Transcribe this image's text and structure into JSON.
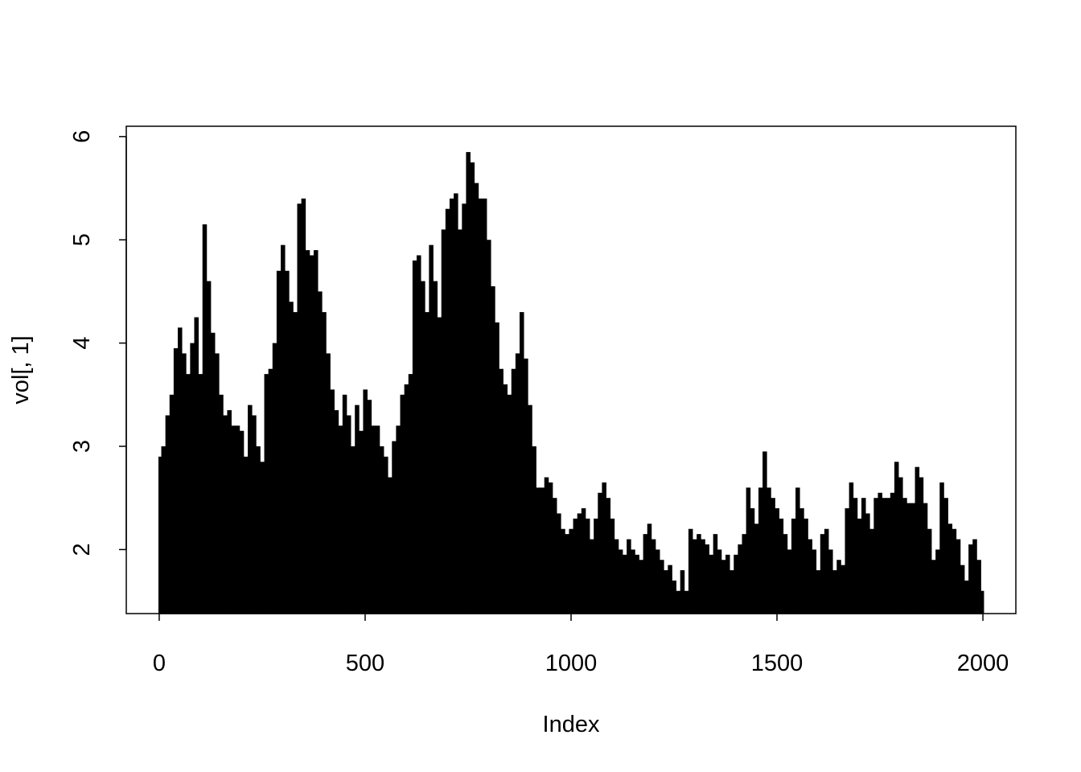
{
  "chart_data": {
    "type": "bar",
    "style": "histogram-like vertical lines (R type='h')",
    "title": "",
    "xlabel": "Index",
    "ylabel": "vol[, 1]",
    "xlim": [
      -80,
      2080
    ],
    "ylim": [
      1.38,
      6.1
    ],
    "xticks": [
      "0",
      "500",
      "1000",
      "1500",
      "2000"
    ],
    "yticks": [
      "2",
      "3",
      "4",
      "5",
      "6"
    ],
    "grid": false,
    "color": "#000000",
    "x_step": 10,
    "x_start": 0,
    "values": [
      2.9,
      3.0,
      3.3,
      3.5,
      3.95,
      4.15,
      3.9,
      3.7,
      4.0,
      4.25,
      3.7,
      5.15,
      4.6,
      4.1,
      3.9,
      3.5,
      3.3,
      3.35,
      3.2,
      3.2,
      3.15,
      2.9,
      3.4,
      3.3,
      3.0,
      2.85,
      3.7,
      3.75,
      4.0,
      4.7,
      4.95,
      4.7,
      4.4,
      4.3,
      5.35,
      5.4,
      4.9,
      4.85,
      4.9,
      4.5,
      4.3,
      3.9,
      3.55,
      3.35,
      3.2,
      3.5,
      3.3,
      3.0,
      3.4,
      3.15,
      3.55,
      3.45,
      3.2,
      3.2,
      3.0,
      2.9,
      2.7,
      3.05,
      3.2,
      3.5,
      3.6,
      3.7,
      4.8,
      4.85,
      4.6,
      4.3,
      4.95,
      4.6,
      4.25,
      5.1,
      5.3,
      5.4,
      5.45,
      5.1,
      5.35,
      5.85,
      5.75,
      5.55,
      5.4,
      5.4,
      5.0,
      4.55,
      4.2,
      3.75,
      3.6,
      3.5,
      3.75,
      3.9,
      4.3,
      3.85,
      3.4,
      3.0,
      2.6,
      2.6,
      2.7,
      2.65,
      2.5,
      2.35,
      2.2,
      2.15,
      2.2,
      2.3,
      2.35,
      2.4,
      2.3,
      2.1,
      2.3,
      2.55,
      2.65,
      2.5,
      2.3,
      2.1,
      2.0,
      1.95,
      2.1,
      2.0,
      1.95,
      1.9,
      2.15,
      2.25,
      2.1,
      2.0,
      1.9,
      1.8,
      1.85,
      1.7,
      1.6,
      1.8,
      1.6,
      2.2,
      2.1,
      2.15,
      2.1,
      2.05,
      1.95,
      2.15,
      2.0,
      1.9,
      1.95,
      1.8,
      1.95,
      2.05,
      2.15,
      2.6,
      2.4,
      2.25,
      2.6,
      2.95,
      2.6,
      2.5,
      2.4,
      2.3,
      2.15,
      2.0,
      2.3,
      2.6,
      2.4,
      2.3,
      2.1,
      2.0,
      1.8,
      2.15,
      2.2,
      2.0,
      1.8,
      1.9,
      1.85,
      2.4,
      2.65,
      2.5,
      2.3,
      2.5,
      2.35,
      2.2,
      2.5,
      2.55,
      2.5,
      2.5,
      2.55,
      2.85,
      2.7,
      2.5,
      2.45,
      2.45,
      2.8,
      2.7,
      2.45,
      2.2,
      1.9,
      2.0,
      2.65,
      2.5,
      2.25,
      2.2,
      2.1,
      1.85,
      1.7,
      2.05,
      2.1,
      1.9,
      1.6
    ]
  }
}
